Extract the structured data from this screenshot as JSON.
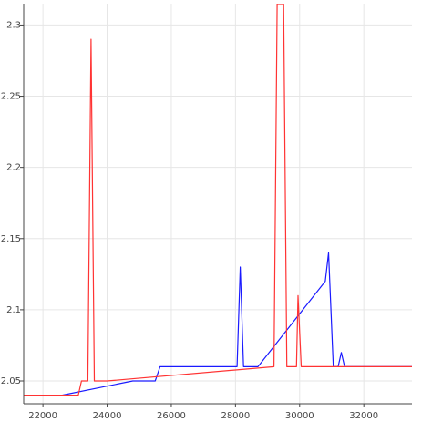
{
  "chart_data": {
    "type": "line",
    "title": "",
    "xlabel": "",
    "ylabel": "",
    "xlim": [
      21400,
      33500
    ],
    "ylim": [
      2.034,
      2.315
    ],
    "grid": true,
    "x_ticks": [
      22000,
      24000,
      26000,
      28000,
      30000,
      32000
    ],
    "x_tick_labels": [
      "22000",
      "24000",
      "26000",
      "28000",
      "30000",
      "32000"
    ],
    "y_ticks": [
      2.05,
      2.1,
      2.15,
      2.2,
      2.25,
      2.3
    ],
    "y_tick_labels": [
      "2.05",
      "2.1",
      "2.15",
      "2.2",
      "2.25",
      "2.3"
    ],
    "series": [
      {
        "color": "#1a1aff",
        "points": [
          [
            21400,
            2.04
          ],
          [
            22600,
            2.04
          ],
          [
            24800,
            2.05
          ],
          [
            25500,
            2.05
          ],
          [
            25650,
            2.06
          ],
          [
            28050,
            2.06
          ],
          [
            28150,
            2.13
          ],
          [
            28250,
            2.06
          ],
          [
            28700,
            2.06
          ],
          [
            30800,
            2.12
          ],
          [
            30900,
            2.14
          ],
          [
            31050,
            2.06
          ],
          [
            31200,
            2.06
          ],
          [
            31300,
            2.07
          ],
          [
            31400,
            2.06
          ],
          [
            33500,
            2.06
          ]
        ]
      },
      {
        "color": "#ff3333",
        "points": [
          [
            21400,
            2.04
          ],
          [
            23100,
            2.04
          ],
          [
            23200,
            2.05
          ],
          [
            23400,
            2.05
          ],
          [
            23500,
            2.29
          ],
          [
            23600,
            2.05
          ],
          [
            24000,
            2.05
          ],
          [
            29200,
            2.06
          ],
          [
            29300,
            2.315
          ],
          [
            29500,
            2.315
          ],
          [
            29600,
            2.06
          ],
          [
            29900,
            2.06
          ],
          [
            29950,
            2.11
          ],
          [
            30050,
            2.06
          ],
          [
            33500,
            2.06
          ]
        ]
      }
    ]
  }
}
